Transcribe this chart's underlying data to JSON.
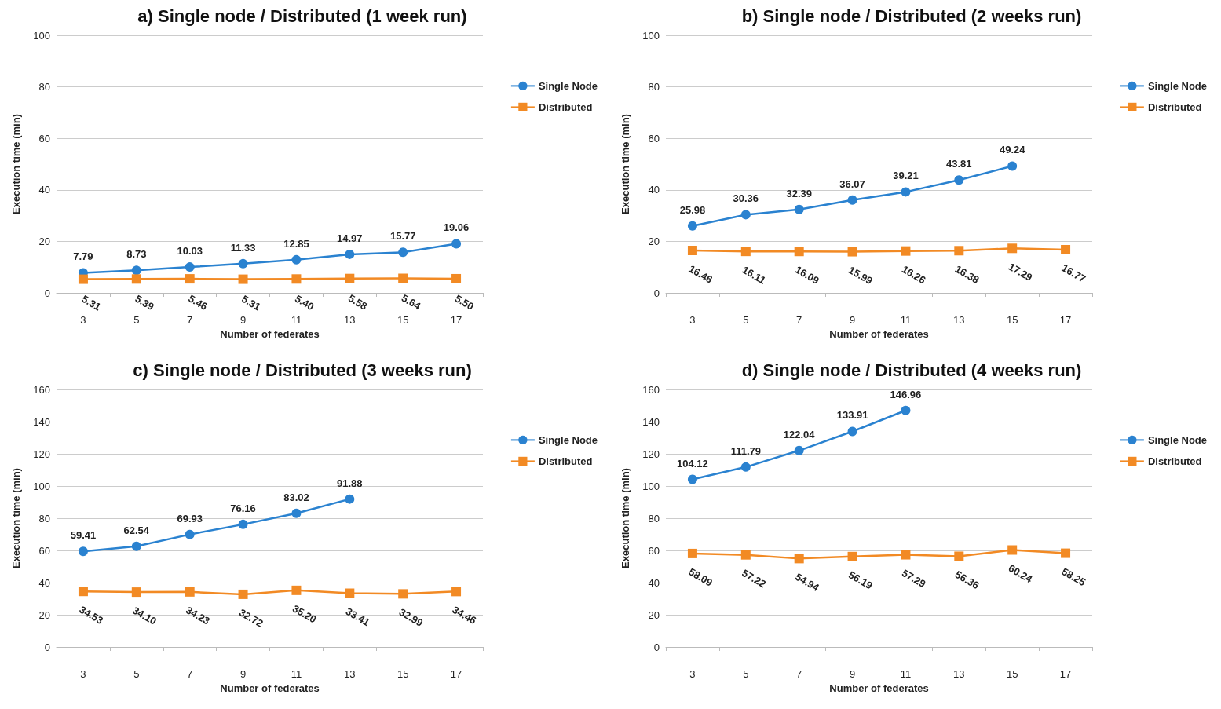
{
  "chart_data": [
    {
      "type": "line",
      "title": "a) Single node / Distributed (1 week run)",
      "xlabel": "Number of federates",
      "ylabel": "Execution time (min)",
      "categories": [
        "3",
        "5",
        "7",
        "9",
        "11",
        "13",
        "15",
        "17"
      ],
      "ylim": [
        0,
        100
      ],
      "yticks": [
        0,
        20,
        40,
        60,
        80,
        100
      ],
      "grid": "y",
      "legend": "right",
      "series": [
        {
          "name": "Single Node",
          "color": "#2a82d0",
          "marker": "circle",
          "values": [
            7.79,
            8.73,
            10.03,
            11.33,
            12.85,
            14.97,
            15.77,
            19.06
          ],
          "value_labels": [
            "7.79",
            "8.73",
            "10.03",
            "11.33",
            "12.85",
            "14.97",
            "15.77",
            "19.06"
          ]
        },
        {
          "name": "Distributed",
          "color": "#f28a24",
          "marker": "square",
          "values": [
            5.31,
            5.39,
            5.46,
            5.31,
            5.4,
            5.58,
            5.64,
            5.5
          ],
          "value_labels": [
            "5.31",
            "5.39",
            "5.46",
            "5.31",
            "5.40",
            "5.58",
            "5.64",
            "5.50"
          ]
        }
      ]
    },
    {
      "type": "line",
      "title": "b) Single node / Distributed (2 weeks run)",
      "xlabel": "Number of federates",
      "ylabel": "Execution time (min)",
      "categories": [
        "3",
        "5",
        "7",
        "9",
        "11",
        "13",
        "15",
        "17"
      ],
      "ylim": [
        0,
        100
      ],
      "yticks": [
        0,
        20,
        40,
        60,
        80,
        100
      ],
      "grid": "y",
      "legend": "right",
      "series": [
        {
          "name": "Single Node",
          "color": "#2a82d0",
          "marker": "circle",
          "values": [
            25.98,
            30.36,
            32.39,
            36.07,
            39.21,
            43.81,
            49.24,
            null
          ],
          "value_labels": [
            "25.98",
            "30.36",
            "32.39",
            "36.07",
            "39.21",
            "43.81",
            "49.24",
            null
          ]
        },
        {
          "name": "Distributed",
          "color": "#f28a24",
          "marker": "square",
          "values": [
            16.46,
            16.11,
            16.09,
            15.99,
            16.26,
            16.38,
            17.29,
            16.77
          ],
          "value_labels": [
            "16.46",
            "16.11",
            "16.09",
            "15.99",
            "16.26",
            "16.38",
            "17.29",
            "16.77"
          ]
        }
      ]
    },
    {
      "type": "line",
      "title": "c) Single node / Distributed (3 weeks run)",
      "xlabel": "Number of federates",
      "ylabel": "Execution time (min)",
      "categories": [
        "3",
        "5",
        "7",
        "9",
        "11",
        "13",
        "15",
        "17"
      ],
      "ylim": [
        0,
        160
      ],
      "yticks": [
        0,
        20,
        40,
        60,
        80,
        100,
        120,
        140,
        160
      ],
      "grid": "y",
      "legend": "right",
      "series": [
        {
          "name": "Single Node",
          "color": "#2a82d0",
          "marker": "circle",
          "values": [
            59.41,
            62.54,
            69.93,
            76.16,
            83.02,
            91.88,
            null,
            null
          ],
          "value_labels": [
            "59.41",
            "62.54",
            "69.93",
            "76.16",
            "83.02",
            "91.88",
            null,
            null
          ]
        },
        {
          "name": "Distributed",
          "color": "#f28a24",
          "marker": "square",
          "values": [
            34.53,
            34.1,
            34.23,
            32.72,
            35.2,
            33.41,
            32.99,
            34.46
          ],
          "value_labels": [
            "34.53",
            "34.10",
            "34.23",
            "32.72",
            "35.20",
            "33.41",
            "32.99",
            "34.46"
          ]
        }
      ]
    },
    {
      "type": "line",
      "title": "d) Single node / Distributed (4 weeks run)",
      "xlabel": "Number of federates",
      "ylabel": "Execution time (min)",
      "categories": [
        "3",
        "5",
        "7",
        "9",
        "11",
        "13",
        "15",
        "17"
      ],
      "ylim": [
        0,
        160
      ],
      "yticks": [
        0,
        20,
        40,
        60,
        80,
        100,
        120,
        140,
        160
      ],
      "grid": "y",
      "legend": "right",
      "series": [
        {
          "name": "Single Node",
          "color": "#2a82d0",
          "marker": "circle",
          "values": [
            104.12,
            111.79,
            122.04,
            133.91,
            146.96,
            null,
            null,
            null
          ],
          "value_labels": [
            "104.12",
            "111.79",
            "122.04",
            "133.91",
            "146.96",
            null,
            null,
            null
          ]
        },
        {
          "name": "Distributed",
          "color": "#f28a24",
          "marker": "square",
          "values": [
            58.09,
            57.22,
            54.94,
            56.19,
            57.29,
            56.36,
            60.24,
            58.25
          ],
          "value_labels": [
            "58.09",
            "57.22",
            "54.94",
            "56.19",
            "57.29",
            "56.36",
            "60.24",
            "58.25"
          ]
        }
      ]
    }
  ]
}
